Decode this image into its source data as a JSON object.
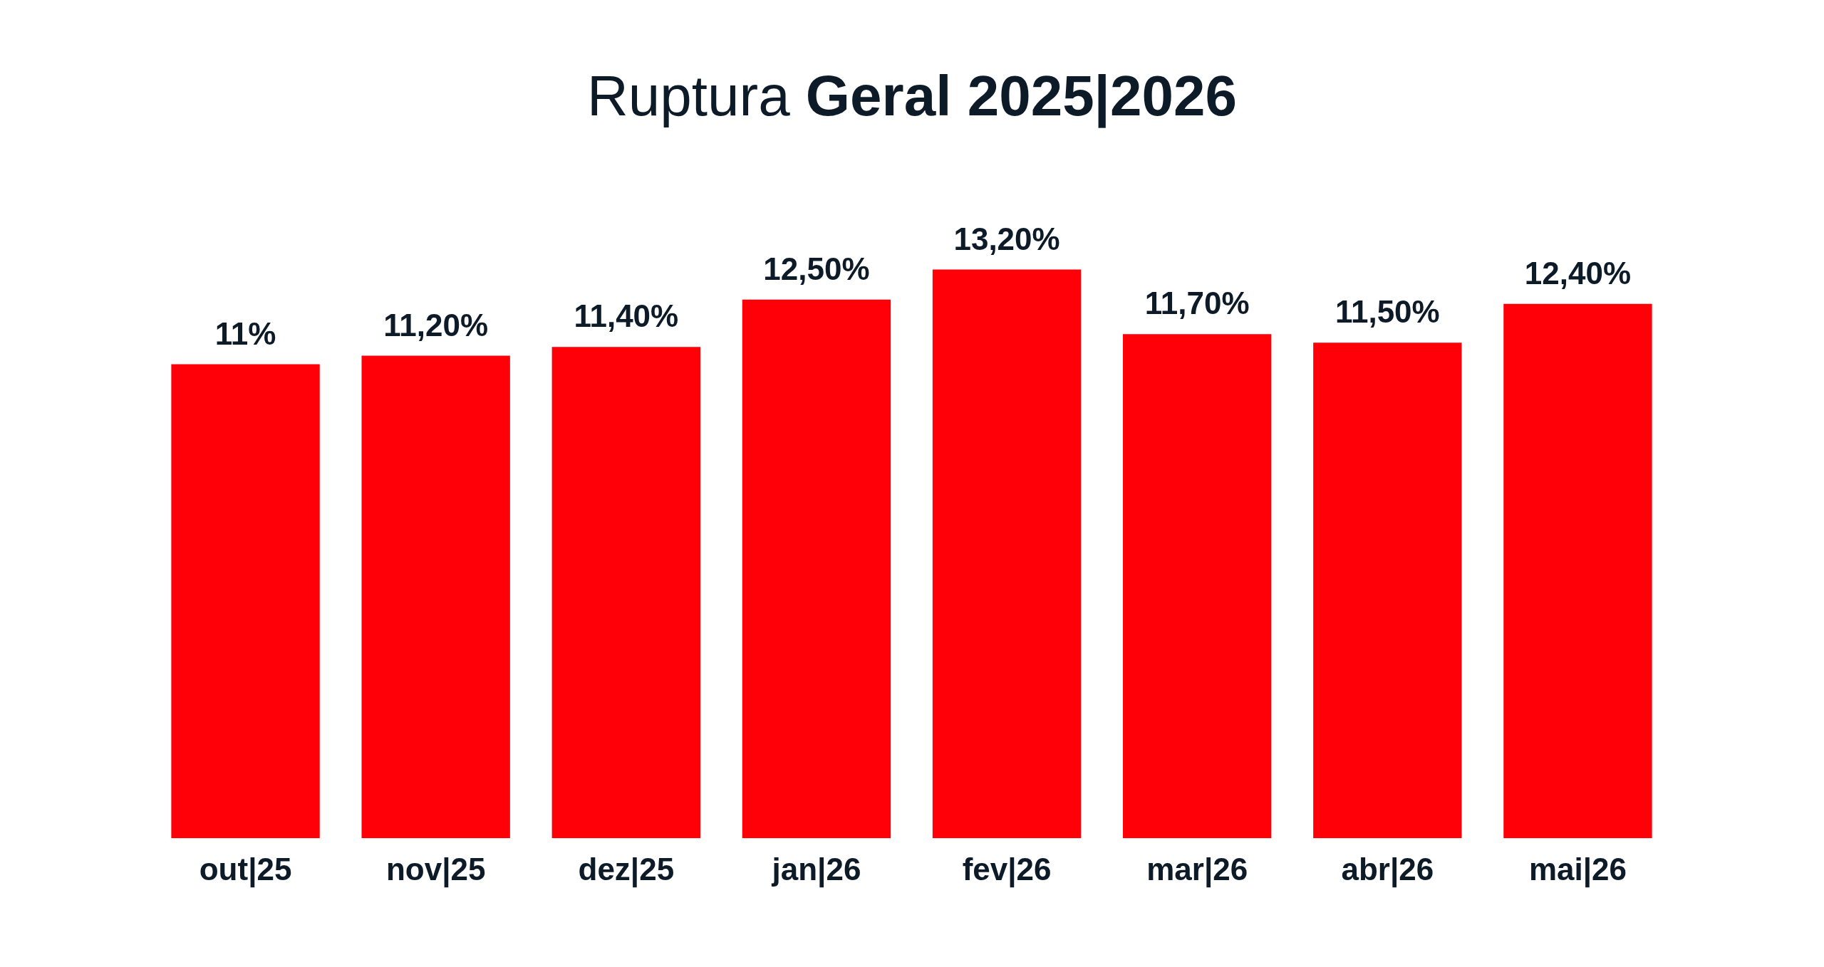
{
  "chart_data": {
    "type": "bar",
    "title": "Ruptura Geral 2025|2026",
    "categories": [
      "out|25",
      "nov|25",
      "dez|25",
      "jan|26",
      "fev|26",
      "mar|26",
      "abr|26",
      "mai|26"
    ],
    "values": [
      11,
      11.2,
      11.4,
      12.5,
      13.2,
      11.7,
      11.5,
      12.4
    ],
    "value_labels": [
      "11%",
      "11,20%",
      "11,40%",
      "12,50%",
      "13,20%",
      "11,70%",
      "11,50%",
      "12,40%"
    ],
    "color": "#ff0009"
  }
}
